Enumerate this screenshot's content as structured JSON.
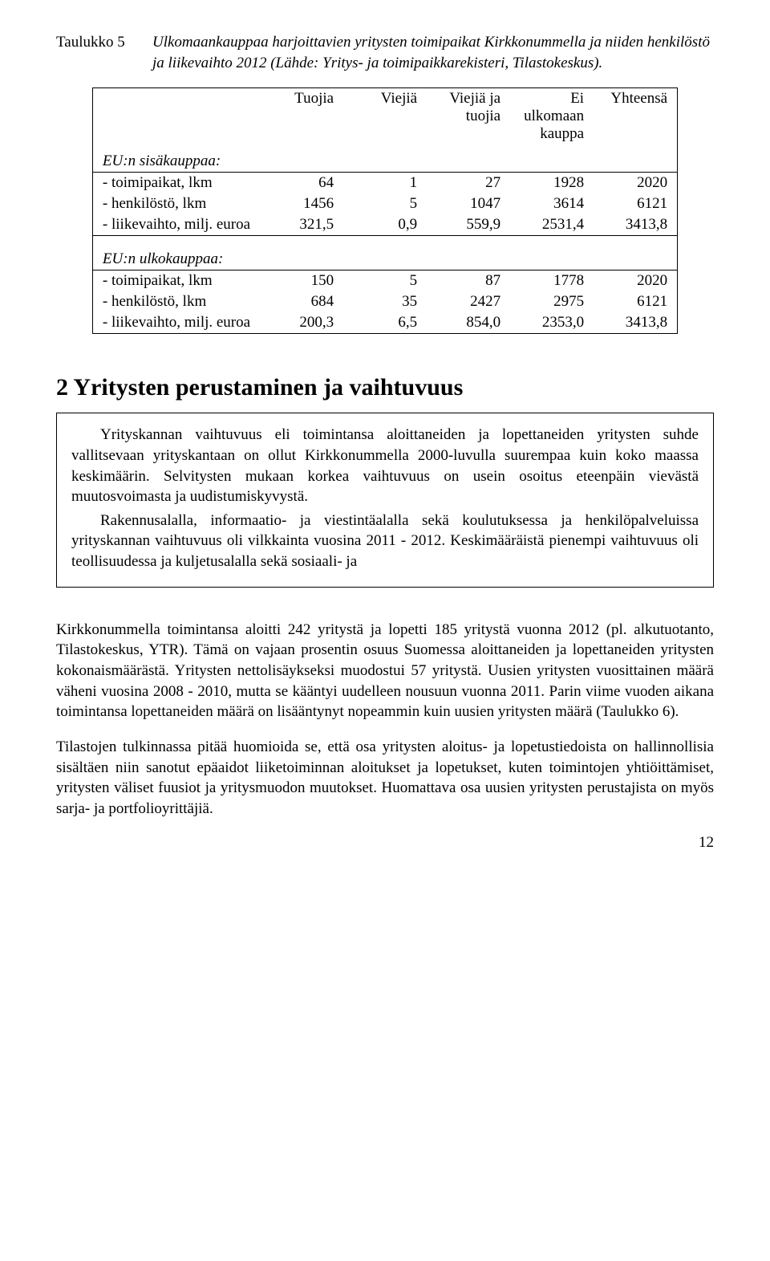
{
  "caption": {
    "label": "Taulukko 5",
    "text": "Ulkomaankauppaa harjoittavien yritysten toimipaikat Kirkkonummella ja niiden henkilöstö ja liikevaihto 2012 (Lähde: Yritys- ja toimipaikkarekisteri, Tilastokeskus)."
  },
  "table": {
    "headers": {
      "c1": "Tuojia",
      "c2": "Viejiä",
      "c3a": "Viejiä ja",
      "c3b": "tuojia",
      "c4a": "Ei",
      "c4b": "ulkomaan",
      "c4c": "kauppa",
      "c5": "Yhteensä"
    },
    "section1": {
      "title": "EU:n sisäkauppaa:",
      "rows": [
        {
          "label": "- toimipaikat, lkm",
          "v": [
            "64",
            "1",
            "27",
            "1928",
            "2020"
          ]
        },
        {
          "label": "- henkilöstö, lkm",
          "v": [
            "1456",
            "5",
            "1047",
            "3614",
            "6121"
          ]
        },
        {
          "label": "- liikevaihto, milj. euroa",
          "v": [
            "321,5",
            "0,9",
            "559,9",
            "2531,4",
            "3413,8"
          ]
        }
      ]
    },
    "section2": {
      "title": "EU:n ulkokauppaa:",
      "rows": [
        {
          "label": "- toimipaikat, lkm",
          "v": [
            "150",
            "5",
            "87",
            "1778",
            "2020"
          ]
        },
        {
          "label": "- henkilöstö, lkm",
          "v": [
            "684",
            "35",
            "2427",
            "2975",
            "6121"
          ]
        },
        {
          "label": "- liikevaihto, milj. euroa",
          "v": [
            "200,3",
            "6,5",
            "854,0",
            "2353,0",
            "3413,8"
          ]
        }
      ]
    }
  },
  "heading": "2 Yritysten perustaminen ja vaihtuvuus",
  "box": {
    "p1": "Yrityskannan vaihtuvuus eli toimintansa aloittaneiden ja lopettaneiden yritysten suhde vallitsevaan yrityskantaan on ollut Kirkkonummella 2000-luvulla suurempaa kuin koko maassa keskimäärin. Selvitysten mukaan korkea vaihtuvuus on usein osoitus eteenpäin vievästä muutosvoimasta ja uudistumiskyvystä.",
    "p2": "Rakennusalalla, informaatio- ja viestintäalalla sekä koulutuksessa ja henkilöpalveluissa yrityskannan vaihtuvuus oli vilkkainta vuosina 2011 - 2012. Keskimääräistä pienempi vaihtuvuus oli teollisuudessa ja kuljetusalalla sekä sosiaali- ja"
  },
  "body": {
    "p1": "Kirkkonummella toimintansa aloitti 242 yritystä ja lopetti 185 yritystä vuonna 2012 (pl. alkutuotanto, Tilastokeskus, YTR). Tämä on vajaan prosentin osuus Suomessa aloittaneiden ja lopettaneiden yritysten kokonaismäärästä. Yritysten nettolisäykseksi muodostui 57 yritystä. Uusien yritysten vuosittainen määrä väheni vuosina 2008 - 2010, mutta se kääntyi uudelleen nousuun vuonna 2011. Parin viime vuoden aikana toimintansa lopettaneiden määrä on lisääntynyt nopeammin kuin uusien yritysten määrä (Taulukko 6).",
    "p2": "Tilastojen tulkinnassa pitää huomioida se, että osa yritysten aloitus- ja lopetustiedoista on hallinnollisia sisältäen niin sanotut epäaidot liiketoiminnan aloitukset ja lopetukset, kuten toimintojen yhtiöittämiset, yritysten väliset fuusiot ja yritysmuodon muutokset. Huomattava osa uusien yritysten perustajista on myös sarja- ja portfolioyrittäjiä."
  },
  "pageNumber": "12"
}
